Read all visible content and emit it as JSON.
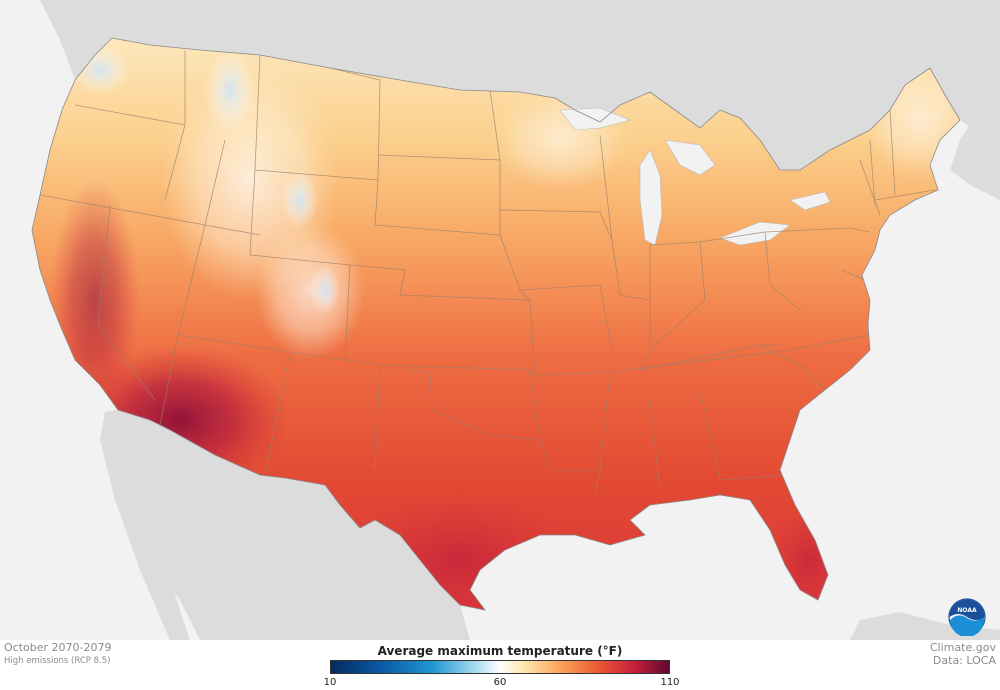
{
  "period": "October 2070-2079",
  "scenario": "High emissions (RCP 8.5)",
  "credit_site": "Climate.gov",
  "credit_data": "Data: LOCA",
  "logo_text": "NOAA",
  "legend": {
    "title": "Average maximum temperature (°F)",
    "min_label": "10",
    "mid_label": "60",
    "max_label": "110",
    "range": [
      10,
      110
    ],
    "colors": [
      "#062a5e",
      "#0b5aa6",
      "#1f97d1",
      "#a9dcf0",
      "#ffffff",
      "#fde7b0",
      "#f9a35a",
      "#ec5a35",
      "#c31f3b",
      "#5e0930"
    ]
  },
  "colors": {
    "land_outside": "#dcdcdc",
    "water": "#f2f2f2",
    "border_lines": "#9a7f6a",
    "noaa_blue": "#1b4f9c"
  }
}
